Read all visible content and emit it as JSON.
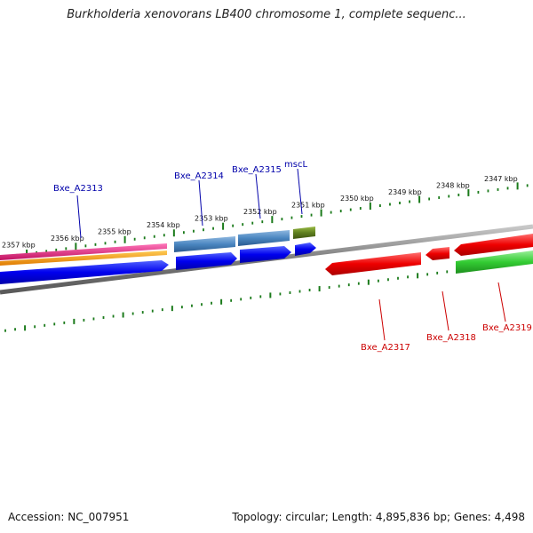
{
  "title": "Burkholderia xenovorans LB400 chromosome 1, complete sequenc...",
  "footer": {
    "accession": "Accession: NC_007951",
    "stats": "Topology: circular; Length: 4,895,836 bp; Genes: 4,498"
  },
  "colors": {
    "tick": "#1a7a1a",
    "backbone": "#808080",
    "forward_label": "#0000aa",
    "reverse_label": "#cc0000",
    "magenta": "#e0197a",
    "orange": "#ff9900",
    "blue": "#0000ee",
    "steel": "#3d7ab5",
    "olive": "#5f7f1f",
    "red": "#ee0000",
    "green": "#33cc33"
  },
  "scale": {
    "ticks": [
      "2357 kbp",
      "2356 kbp",
      "2355 kbp",
      "2354 kbp",
      "2353 kbp",
      "2352 kbp",
      "2351 kbp",
      "2350 kbp",
      "2349 kbp",
      "2348 kbp",
      "2347 kbp"
    ]
  },
  "genes": [
    {
      "name": "Bxe_A2313",
      "strand": "+",
      "color": "blue",
      "label": "Bxe_A2313"
    },
    {
      "name": "Bxe_A2314",
      "strand": "+",
      "color": "blue",
      "label": "Bxe_A2314"
    },
    {
      "name": "Bxe_A2315",
      "strand": "+",
      "color": "blue",
      "label": "Bxe_A2315"
    },
    {
      "name": "mscL",
      "strand": "+",
      "color": "blue",
      "label": "mscL"
    },
    {
      "name": "Bxe_A2317",
      "strand": "-",
      "color": "red",
      "label": "Bxe_A2317"
    },
    {
      "name": "Bxe_A2318",
      "strand": "-",
      "color": "red",
      "label": "Bxe_A2318"
    },
    {
      "name": "Bxe_A2319",
      "strand": "-",
      "color": "red",
      "label": "Bxe_A2319"
    }
  ]
}
